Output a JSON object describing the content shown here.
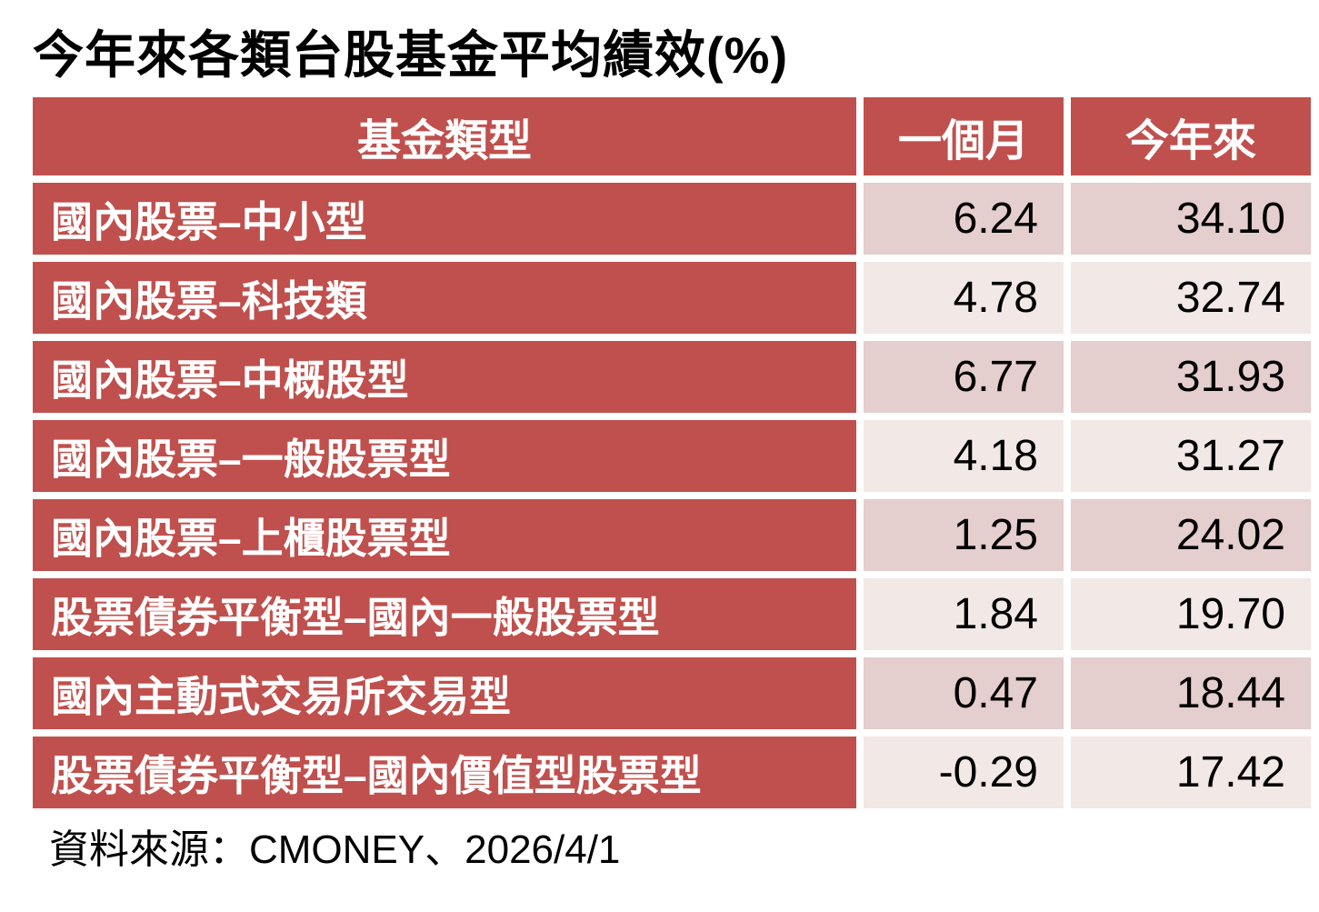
{
  "title": "今年來各類台股基金平均績效(%)",
  "source": "資料來源：CMONEY、2026/4/1",
  "colors": {
    "accent": "#C0504D",
    "band_dark": "#E5CECE",
    "band_light": "#F2E8E6",
    "header_text": "#FFFFFF",
    "value_text": "#000000"
  },
  "table": {
    "columns": [
      "基金類型",
      "一個月",
      "今年來"
    ],
    "rows": [
      {
        "name": "國內股票–中小型",
        "one_month": "6.24",
        "ytd": "34.10"
      },
      {
        "name": "國內股票–科技類",
        "one_month": "4.78",
        "ytd": "32.74"
      },
      {
        "name": "國內股票–中概股型",
        "one_month": "6.77",
        "ytd": "31.93"
      },
      {
        "name": "國內股票–一般股票型",
        "one_month": "4.18",
        "ytd": "31.27"
      },
      {
        "name": "國內股票–上櫃股票型",
        "one_month": "1.25",
        "ytd": "24.02"
      },
      {
        "name": "股票債券平衡型–國內一般股票型",
        "one_month": "1.84",
        "ytd": "19.70"
      },
      {
        "name": "國內主動式交易所交易型",
        "one_month": "0.47",
        "ytd": "18.44"
      },
      {
        "name": "股票債券平衡型–國內價值型股票型",
        "one_month": "-0.29",
        "ytd": "17.42"
      }
    ]
  },
  "chart_data": {
    "type": "table",
    "title": "今年來各類台股基金平均績效(%)",
    "columns": [
      "基金類型",
      "一個月",
      "今年來"
    ],
    "rows": [
      [
        "國內股票–中小型",
        6.24,
        34.1
      ],
      [
        "國內股票–科技類",
        4.78,
        32.74
      ],
      [
        "國內股票–中概股型",
        6.77,
        31.93
      ],
      [
        "國內股票–一般股票型",
        4.18,
        31.27
      ],
      [
        "國內股票–上櫃股票型",
        1.25,
        24.02
      ],
      [
        "股票債券平衡型–國內一般股票型",
        1.84,
        19.7
      ],
      [
        "國內主動式交易所交易型",
        0.47,
        18.44
      ],
      [
        "股票債券平衡型–國內價值型股票型",
        -0.29,
        17.42
      ]
    ],
    "source": "資料來源：CMONEY、2026/4/1"
  }
}
